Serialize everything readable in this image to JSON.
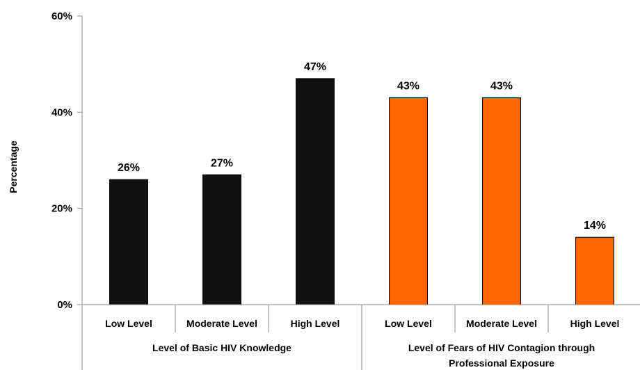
{
  "chart_data": {
    "type": "bar",
    "ylabel": "Percentage",
    "ylim": [
      0,
      60
    ],
    "y_ticks": [
      "0%",
      "20%",
      "40%",
      "60%"
    ],
    "grid": false,
    "groups": [
      {
        "label": "Level of Basic HIV Knowledge",
        "color": "#111111",
        "categories": [
          "Low Level",
          "Moderate Level",
          "High Level"
        ],
        "values": [
          26,
          27,
          47
        ],
        "value_labels": [
          "26%",
          "27%",
          "47%"
        ]
      },
      {
        "label_lines": [
          "Level of Fears of HIV Contagion through",
          "Professional Exposure"
        ],
        "color": "#ff6600",
        "categories": [
          "Low Level",
          "Moderate Level",
          "High Level"
        ],
        "values": [
          43,
          43,
          14
        ],
        "value_labels": [
          "43%",
          "43%",
          "14%"
        ]
      }
    ]
  }
}
